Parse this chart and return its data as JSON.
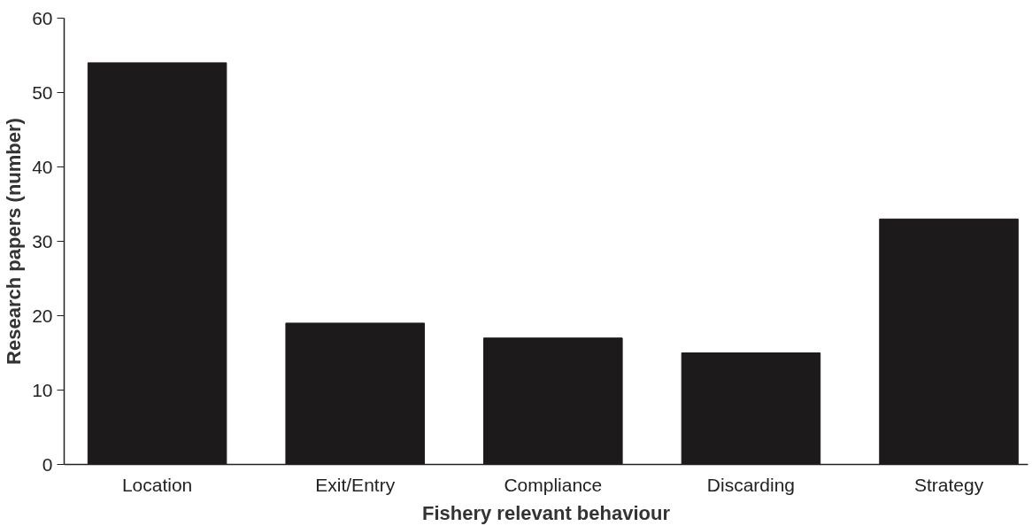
{
  "chart_data": {
    "type": "bar",
    "xlabel": "Fishery relevant behaviour",
    "ylabel": "Research papers (number)",
    "categories": [
      "Location",
      "Exit/Entry",
      "Compliance",
      "Discarding",
      "Strategy"
    ],
    "values": [
      54,
      19,
      17,
      15,
      33
    ],
    "color": "#1c1a1b",
    "ylim": [
      0,
      60
    ],
    "yticks": [
      0,
      10,
      20,
      30,
      40,
      50,
      60
    ],
    "grid": false
  }
}
